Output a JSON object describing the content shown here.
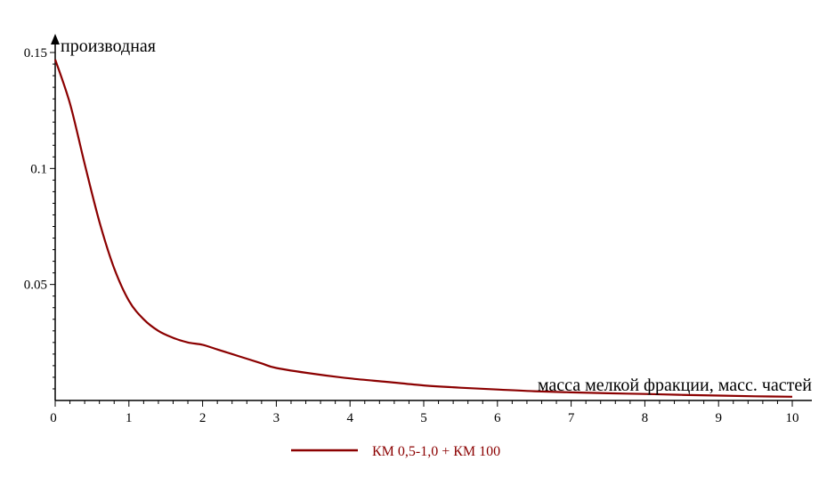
{
  "chart_data": {
    "type": "line",
    "xlabel": "масса мелкой фракции, масс. частей",
    "ylabel": "производная",
    "xlim": [
      0,
      10
    ],
    "ylim": [
      0,
      0.15
    ],
    "x_ticks": [
      {
        "v": 0,
        "label": "0"
      },
      {
        "v": 1,
        "label": "1"
      },
      {
        "v": 2,
        "label": "2"
      },
      {
        "v": 3,
        "label": "3"
      },
      {
        "v": 4,
        "label": "4"
      },
      {
        "v": 5,
        "label": "5"
      },
      {
        "v": 6,
        "label": "6"
      },
      {
        "v": 7,
        "label": "7"
      },
      {
        "v": 8,
        "label": "8"
      },
      {
        "v": 9,
        "label": "9"
      },
      {
        "v": 10,
        "label": "10"
      }
    ],
    "y_ticks": [
      {
        "v": 0.05,
        "label": "0.05"
      },
      {
        "v": 0.1,
        "label": "0.1"
      },
      {
        "v": 0.15,
        "label": "0.15"
      }
    ],
    "grid": false,
    "legend_position": "bottom",
    "series": [
      {
        "name": "КМ 0,5-1,0 + КМ 100",
        "color": "#8B0000",
        "points": [
          [
            0.0,
            0.147
          ],
          [
            0.2,
            0.128
          ],
          [
            0.4,
            0.102
          ],
          [
            0.6,
            0.077
          ],
          [
            0.8,
            0.057
          ],
          [
            1.0,
            0.043
          ],
          [
            1.2,
            0.035
          ],
          [
            1.4,
            0.03
          ],
          [
            1.6,
            0.027
          ],
          [
            1.8,
            0.025
          ],
          [
            2.0,
            0.024
          ],
          [
            2.2,
            0.022
          ],
          [
            2.5,
            0.019
          ],
          [
            2.8,
            0.016
          ],
          [
            3.0,
            0.014
          ],
          [
            3.5,
            0.0115
          ],
          [
            4.0,
            0.0095
          ],
          [
            4.5,
            0.008
          ],
          [
            5.0,
            0.0065
          ],
          [
            5.5,
            0.0055
          ],
          [
            6.0,
            0.0047
          ],
          [
            6.5,
            0.004
          ],
          [
            7.0,
            0.0035
          ],
          [
            7.5,
            0.0031
          ],
          [
            8.0,
            0.0028
          ],
          [
            8.5,
            0.0024
          ],
          [
            9.0,
            0.0021
          ],
          [
            9.5,
            0.0018
          ],
          [
            10.0,
            0.0016
          ]
        ]
      }
    ]
  }
}
